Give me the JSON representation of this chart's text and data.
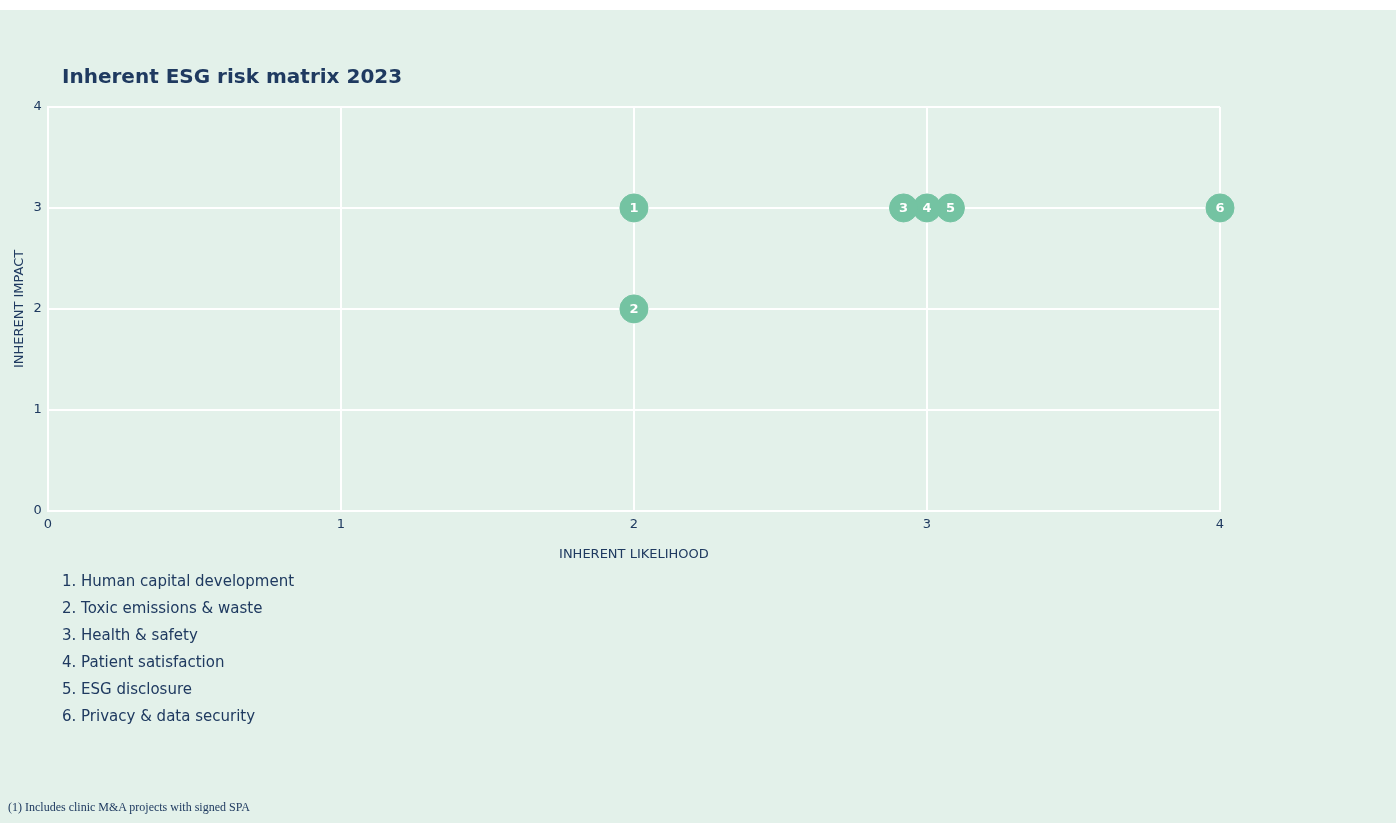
{
  "chart_data": {
    "type": "scatter",
    "title": "Inherent ESG risk matrix 2023",
    "xlabel": "INHERENT LIKELIHOOD",
    "ylabel": "INHERENT IMPACT",
    "series": [
      {
        "name": "1",
        "color": "#74c3a2",
        "x": [
          2
        ],
        "values": [
          3
        ]
      },
      {
        "name": "2",
        "color": "#74c3a2",
        "x": [
          2
        ],
        "values": [
          2
        ]
      },
      {
        "name": "3",
        "color": "#74c3a2",
        "x": [
          2.92
        ],
        "values": [
          3
        ]
      },
      {
        "name": "4",
        "color": "#74c3a2",
        "x": [
          3
        ],
        "values": [
          3
        ]
      },
      {
        "name": "5",
        "color": "#74c3a2",
        "x": [
          3.08
        ],
        "values": [
          3
        ]
      },
      {
        "name": "6",
        "color": "#74c3a2",
        "x": [
          4
        ],
        "values": [
          3
        ]
      }
    ],
    "xlim": [
      0,
      4
    ],
    "xticks": [
      0,
      1,
      2,
      3,
      4
    ],
    "ylim": [
      0,
      4
    ],
    "yticks": [
      0,
      1,
      2,
      3,
      4
    ],
    "grid": true,
    "marker": "circle",
    "annotations": [
      "1. Human capital development",
      "2. Toxic emissions & waste",
      "3. Health & safety",
      "4. Patient satisfaction",
      "5. ESG disclosure",
      "6. Privacy & data security",
      "(1)  Includes clinic M&A projects with signed SPA"
    ]
  }
}
